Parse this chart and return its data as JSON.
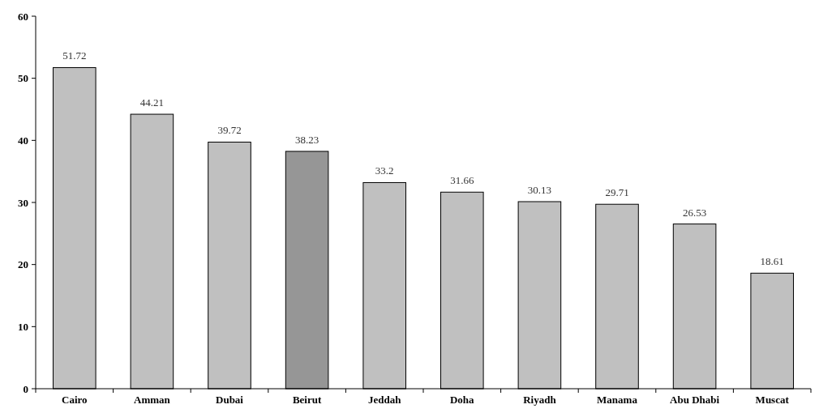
{
  "chart_data": {
    "type": "bar",
    "categories": [
      "Cairo",
      "Amman",
      "Dubai",
      "Beirut",
      "Jeddah",
      "Doha",
      "Riyadh",
      "Manama",
      "Abu Dhabi",
      "Muscat"
    ],
    "values": [
      51.72,
      44.21,
      39.72,
      38.23,
      33.2,
      31.66,
      30.13,
      29.71,
      26.53,
      18.61
    ],
    "colors": [
      "#c0c0c0",
      "#c0c0c0",
      "#c0c0c0",
      "#969696",
      "#c0c0c0",
      "#c0c0c0",
      "#c0c0c0",
      "#c0c0c0",
      "#c0c0c0",
      "#c0c0c0"
    ],
    "ylim": [
      0,
      60
    ],
    "yticks": [
      0,
      10,
      20,
      30,
      40,
      50,
      60
    ],
    "data_labels": true,
    "grid": false
  }
}
